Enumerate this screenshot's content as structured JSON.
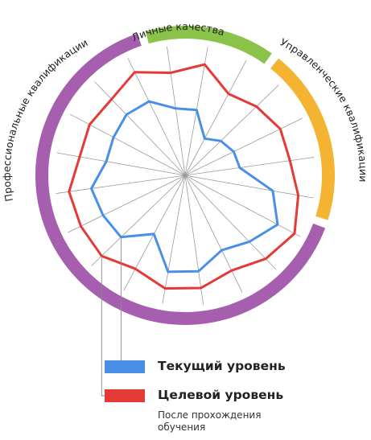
{
  "chart_data": {
    "type": "radar",
    "title": "",
    "axes_count": 20,
    "scale_max": 100,
    "grid": "radial-spokes-only",
    "segments": [
      {
        "label": "Личные качества",
        "color": "#8BC34A",
        "axes": [
          0,
          1,
          2
        ]
      },
      {
        "label": "Управленческие квалификации",
        "color": "#F4B331",
        "axes": [
          3,
          4,
          5,
          6
        ]
      },
      {
        "label": "Профессиональные квалификации",
        "color": "#A65FAE",
        "axes": [
          7,
          8,
          9,
          10,
          11,
          12,
          13,
          14,
          15,
          16,
          17,
          18,
          19
        ]
      }
    ],
    "series": [
      {
        "name": "Текущий уровень",
        "color": "#4A8FE7",
        "values": [
          60,
          59,
          37,
          44,
          48,
          49,
          79,
          93,
          82,
          74,
          86,
          87,
          59,
          79,
          81,
          84,
          71,
          72,
          75,
          73
        ]
      },
      {
        "name": "Целевой уровень",
        "color": "#E53935",
        "values": [
          92,
          100,
          82,
          88,
          94,
          94,
          102,
          110,
          103,
          94,
          101,
          102,
          94,
          103,
          103,
          104,
          95,
          96,
          94,
          102
        ]
      }
    ]
  },
  "legend": {
    "current": "Текущий уровень",
    "target": "Целевой уровень",
    "target_note_line1": "После прохождения",
    "target_note_line2": "обучения"
  }
}
